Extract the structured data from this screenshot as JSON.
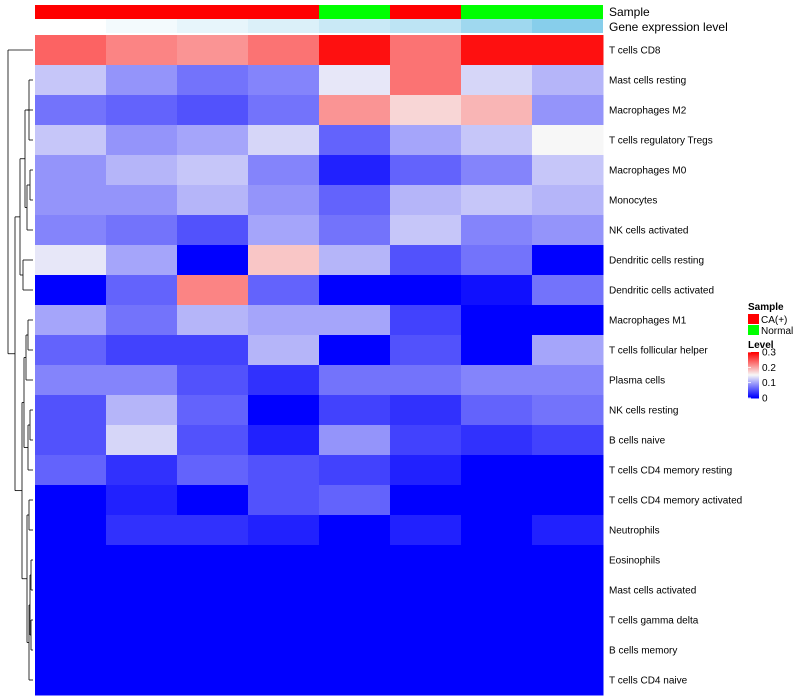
{
  "chart_data": {
    "type": "heatmap",
    "row_labels": [
      "T cells CD8",
      "Mast cells resting",
      "Macrophages M2",
      "T cells regulatory  Tregs",
      "Macrophages M0",
      "Monocytes",
      "NK cells activated",
      "Dendritic cells resting",
      "Dendritic cells activated",
      "Macrophages M1",
      "T cells follicular helper",
      "Plasma cells",
      "NK cells resting",
      "B cells naive",
      "T cells CD4 memory resting",
      "T cells CD4 memory activated",
      "Neutrophils",
      "Eosinophils",
      "Mast cells activated",
      "T cells gamma delta",
      "B cells memory",
      "T cells CD4 naive"
    ],
    "column_sample_group": [
      "CA(+)",
      "CA(+)",
      "CA(+)",
      "CA(+)",
      "Normal",
      "CA(+)",
      "Normal",
      "Normal"
    ],
    "column_gene_expression_level": [
      0.0,
      0.1,
      0.2,
      0.3,
      0.45,
      0.55,
      0.8,
      1.0
    ],
    "values": [
      [
        0.24,
        0.22,
        0.21,
        0.23,
        0.29,
        0.23,
        0.29,
        0.29
      ],
      [
        0.12,
        0.09,
        0.07,
        0.08,
        0.14,
        0.23,
        0.13,
        0.11
      ],
      [
        0.07,
        0.06,
        0.05,
        0.07,
        0.21,
        0.17,
        0.19,
        0.09
      ],
      [
        0.12,
        0.09,
        0.1,
        0.13,
        0.06,
        0.1,
        0.12,
        0.15
      ],
      [
        0.09,
        0.11,
        0.12,
        0.08,
        0.02,
        0.06,
        0.08,
        0.12
      ],
      [
        0.09,
        0.09,
        0.11,
        0.09,
        0.06,
        0.11,
        0.12,
        0.11
      ],
      [
        0.08,
        0.07,
        0.05,
        0.1,
        0.07,
        0.12,
        0.08,
        0.09
      ],
      [
        0.14,
        0.1,
        0.0,
        0.18,
        0.11,
        0.05,
        0.07,
        0.0
      ],
      [
        0.0,
        0.06,
        0.22,
        0.06,
        0.0,
        0.0,
        0.01,
        0.07
      ],
      [
        0.1,
        0.07,
        0.11,
        0.1,
        0.1,
        0.04,
        0.0,
        0.0
      ],
      [
        0.06,
        0.04,
        0.04,
        0.11,
        0.0,
        0.05,
        0.0,
        0.1
      ],
      [
        0.08,
        0.08,
        0.05,
        0.03,
        0.07,
        0.07,
        0.08,
        0.08
      ],
      [
        0.05,
        0.11,
        0.06,
        0.0,
        0.04,
        0.03,
        0.06,
        0.07
      ],
      [
        0.05,
        0.13,
        0.05,
        0.02,
        0.09,
        0.04,
        0.03,
        0.04
      ],
      [
        0.06,
        0.03,
        0.06,
        0.05,
        0.04,
        0.02,
        0.0,
        0.0
      ],
      [
        0.0,
        0.02,
        0.0,
        0.05,
        0.06,
        0.0,
        0.0,
        0.0
      ],
      [
        0.0,
        0.03,
        0.03,
        0.02,
        0.0,
        0.02,
        0.0,
        0.02
      ],
      [
        0.0,
        0.0,
        0.0,
        0.0,
        0.0,
        0.0,
        0.0,
        0.0
      ],
      [
        0.0,
        0.0,
        0.0,
        0.0,
        0.0,
        0.0,
        0.0,
        0.0
      ],
      [
        0.0,
        0.0,
        0.0,
        0.0,
        0.0,
        0.0,
        0.0,
        0.0
      ],
      [
        0.0,
        0.0,
        0.0,
        0.0,
        0.0,
        0.0,
        0.0,
        0.0
      ],
      [
        0.0,
        0.0,
        0.0,
        0.0,
        0.0,
        0.0,
        0.0,
        0.0
      ]
    ],
    "color_scale": {
      "min": 0,
      "mid": 0.15,
      "max": 0.3,
      "low_color": "#0000ff",
      "mid_color": "#f7f7f7",
      "high_color": "#ff0000"
    },
    "annotation_rows": [
      "Sample",
      "Gene expression level"
    ],
    "sample_colors": {
      "CA(+)": "#ff0000",
      "Normal": "#00ff00"
    },
    "expression_colors": {
      "low": "#ffffff",
      "high": "#87ceeb"
    },
    "legend": {
      "sample_title": "Sample",
      "sample_entries": [
        "CA(+)",
        "Normal"
      ],
      "level_title": "Level",
      "level_ticks": [
        "0.3",
        "0.2",
        "0.1",
        "0"
      ],
      "level_tick_values": [
        0.3,
        0.2,
        0.1,
        0
      ]
    },
    "row_dendrogram": true
  }
}
